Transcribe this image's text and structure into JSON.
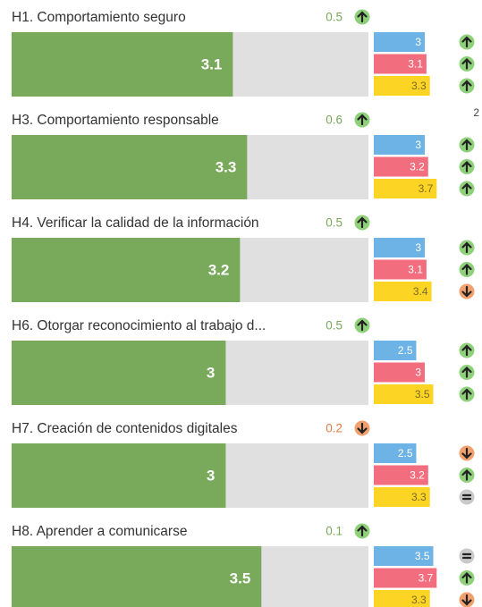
{
  "chart_data": {
    "type": "bar",
    "xlim": [
      0,
      5
    ],
    "corner_note": "2",
    "colors": {
      "main": "#79a95a",
      "track": "#e0e0e0",
      "sub": [
        "#6db3e5",
        "#f26d7d",
        "#fcd424"
      ],
      "up": "#8fd17a",
      "down": "#f2a06e",
      "equal": "#c9c9c9",
      "delta_up": "#79a95a",
      "delta_down": "#e07b45"
    },
    "items": [
      {
        "label": "H1. Comportamiento seguro",
        "delta": 0.5,
        "delta_dir": "up",
        "value": 3.1,
        "sub": [
          3,
          3.1,
          3.3
        ],
        "sub_dirs": [
          "up",
          "up",
          "up"
        ]
      },
      {
        "label": "H3. Comportamiento responsable",
        "delta": 0.6,
        "delta_dir": "up",
        "value": 3.3,
        "sub": [
          3,
          3.2,
          3.7
        ],
        "sub_dirs": [
          "up",
          "up",
          "up"
        ]
      },
      {
        "label": "H4. Verificar la calidad de la información",
        "delta": 0.5,
        "delta_dir": "up",
        "value": 3.2,
        "sub": [
          3,
          3.1,
          3.4
        ],
        "sub_dirs": [
          "up",
          "up",
          "down"
        ]
      },
      {
        "label": "H6. Otorgar reconocimiento al trabajo d...",
        "delta": 0.5,
        "delta_dir": "up",
        "value": 3,
        "sub": [
          2.5,
          3,
          3.5
        ],
        "sub_dirs": [
          "up",
          "up",
          "up"
        ]
      },
      {
        "label": "H7. Creación de contenidos digitales",
        "delta": 0.2,
        "delta_dir": "down",
        "value": 3,
        "sub": [
          2.5,
          3.2,
          3.3
        ],
        "sub_dirs": [
          "down",
          "up",
          "equal"
        ]
      },
      {
        "label": "H8. Aprender a comunicarse",
        "delta": 0.1,
        "delta_dir": "up",
        "value": 3.5,
        "sub": [
          3.5,
          3.7,
          3.3
        ],
        "sub_dirs": [
          "equal",
          "up",
          "down"
        ]
      }
    ]
  }
}
